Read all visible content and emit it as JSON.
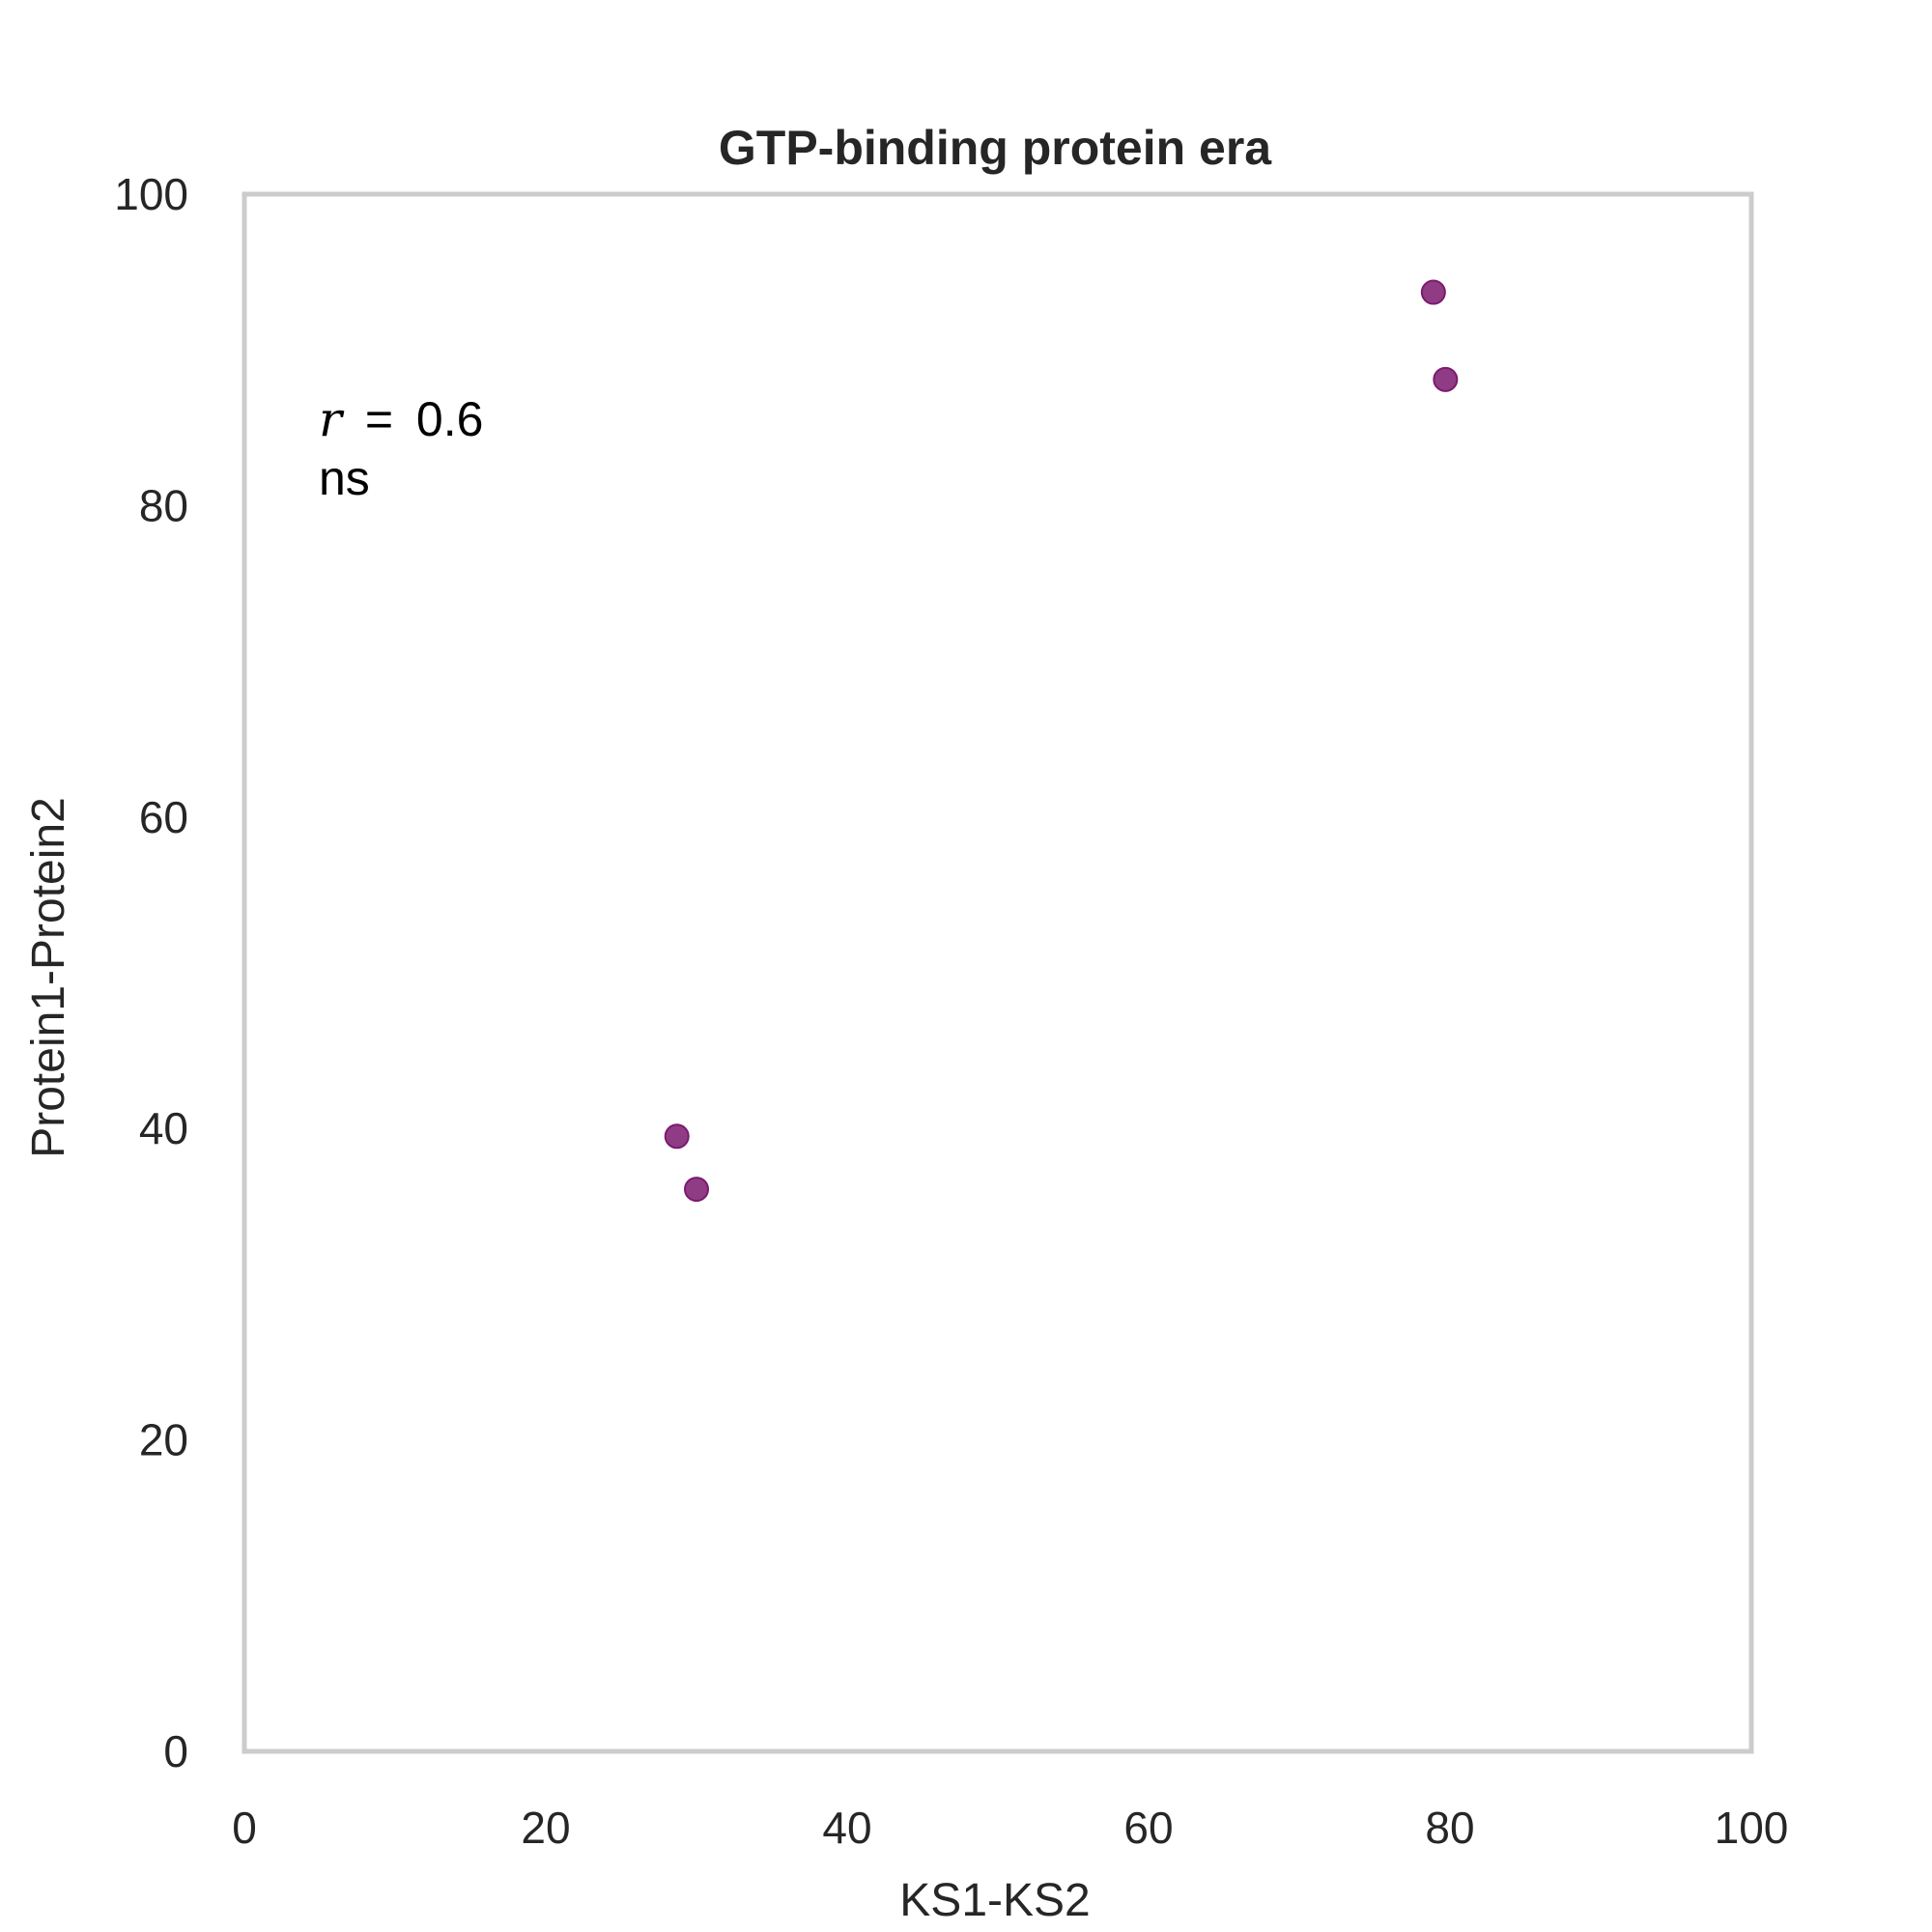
{
  "chart_data": {
    "type": "scatter",
    "title": "GTP-binding protein era",
    "xlabel": "KS1-KS2",
    "ylabel": "Protein1-Protein2",
    "xlim": [
      0,
      100
    ],
    "ylim": [
      0,
      100
    ],
    "xticks": [
      "0",
      "20",
      "40",
      "60",
      "80",
      "100"
    ],
    "yticks": [
      "0",
      "20",
      "40",
      "60",
      "80",
      "100"
    ],
    "grid": false,
    "point_color": "#7b1a6f",
    "frame_color": "#cccccc",
    "points": [
      {
        "x": 28.7,
        "y": 39.5
      },
      {
        "x": 30.0,
        "y": 36.1
      },
      {
        "x": 78.9,
        "y": 93.7
      },
      {
        "x": 79.7,
        "y": 88.1
      }
    ],
    "annotation": {
      "symbol": "r",
      "equals": "=",
      "value": "0.6",
      "significance": "ns"
    }
  }
}
